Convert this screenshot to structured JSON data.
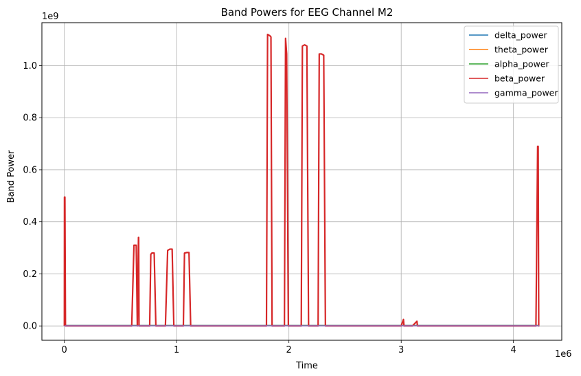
{
  "chart_data": {
    "type": "line",
    "title": "Band Powers for EEG Channel M2",
    "xlabel": "Time",
    "ylabel": "Band Power",
    "x_multiplier_label": "1e6",
    "y_multiplier_label": "1e9",
    "xlim": [
      -200000,
      4430000
    ],
    "ylim": [
      -55000000,
      1165000000
    ],
    "x_ticks": [
      0,
      1000000,
      2000000,
      3000000,
      4000000
    ],
    "x_tick_labels": [
      "0",
      "1",
      "2",
      "3",
      "4"
    ],
    "y_ticks": [
      0,
      200000000,
      400000000,
      600000000,
      800000000,
      1000000000
    ],
    "y_tick_labels": [
      "0.0",
      "0.2",
      "0.4",
      "0.6",
      "0.8",
      "1.0"
    ],
    "grid": true,
    "legend_position": "top-right",
    "series": [
      {
        "name": "delta_power",
        "color": "#1f77b4",
        "x": [
          0,
          4230000
        ],
        "y": [
          2000000,
          2000000
        ]
      },
      {
        "name": "theta_power",
        "color": "#ff7f0e",
        "x": [
          0,
          4230000
        ],
        "y": [
          1500000,
          1500000
        ]
      },
      {
        "name": "alpha_power",
        "color": "#2ca02c",
        "x": [
          0,
          4230000
        ],
        "y": [
          1000000,
          1000000
        ]
      },
      {
        "name": "beta_power",
        "color": "#d62728",
        "x": [
          0,
          1000,
          5000,
          10000,
          600000,
          620000,
          640000,
          650000,
          660000,
          662000,
          665000,
          670000,
          680000,
          760000,
          770000,
          780000,
          800000,
          815000,
          830000,
          900000,
          920000,
          940000,
          960000,
          975000,
          990000,
          1060000,
          1070000,
          1090000,
          1110000,
          1125000,
          1140000,
          1800000,
          1810000,
          1830000,
          1840000,
          1850000,
          1860000,
          1870000,
          1960000,
          1970000,
          1980000,
          1995000,
          2010000,
          2025000,
          2110000,
          2120000,
          2140000,
          2160000,
          2175000,
          2190000,
          2260000,
          2270000,
          2290000,
          2310000,
          2325000,
          2340000,
          3000000,
          3020000,
          3025000,
          3030000,
          3100000,
          3140000,
          3145000,
          3150000,
          4200000,
          4215000,
          4220000,
          4225000,
          4230000
        ],
        "y": [
          0,
          495000000,
          495000000,
          0,
          0,
          310000000,
          310000000,
          0,
          340000000,
          340000000,
          0,
          0,
          0,
          0,
          275000000,
          280000000,
          280000000,
          0,
          0,
          0,
          290000000,
          295000000,
          295000000,
          0,
          0,
          0,
          280000000,
          282000000,
          282000000,
          0,
          0,
          0,
          1120000000,
          1115000000,
          1110000000,
          0,
          0,
          0,
          0,
          1105000000,
          1045000000,
          0,
          0,
          0,
          0,
          1075000000,
          1080000000,
          1075000000,
          0,
          0,
          0,
          1045000000,
          1045000000,
          1040000000,
          0,
          0,
          0,
          25000000,
          0,
          0,
          0,
          18000000,
          0,
          0,
          0,
          690000000,
          690000000,
          0,
          0
        ]
      },
      {
        "name": "gamma_power",
        "color": "#9467bd",
        "x": [
          0,
          4230000
        ],
        "y": [
          500000,
          500000
        ]
      }
    ]
  }
}
